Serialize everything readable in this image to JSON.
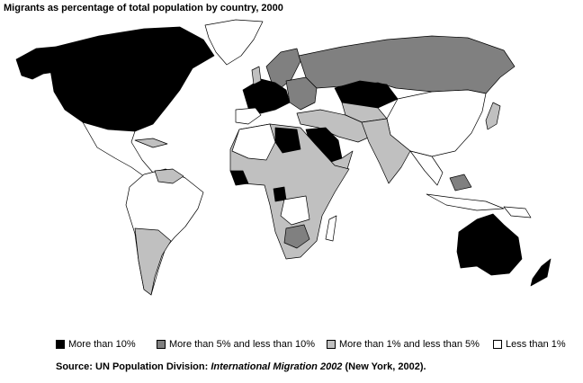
{
  "title": "Migrants as percentage of total population by country, 2000",
  "legend": [
    {
      "label": "More than 10%",
      "color": "#000000"
    },
    {
      "label": "More than 5% and less than 10%",
      "color": "#808080"
    },
    {
      "label": "More than 1% and less than 5%",
      "color": "#c0c0c0"
    },
    {
      "label": "Less than 1%",
      "color": "#ffffff"
    }
  ],
  "source": {
    "prefix": "Source: UN Population Division: ",
    "title": "International Migration 2002",
    "suffix": " (New York, 2002)."
  }
}
